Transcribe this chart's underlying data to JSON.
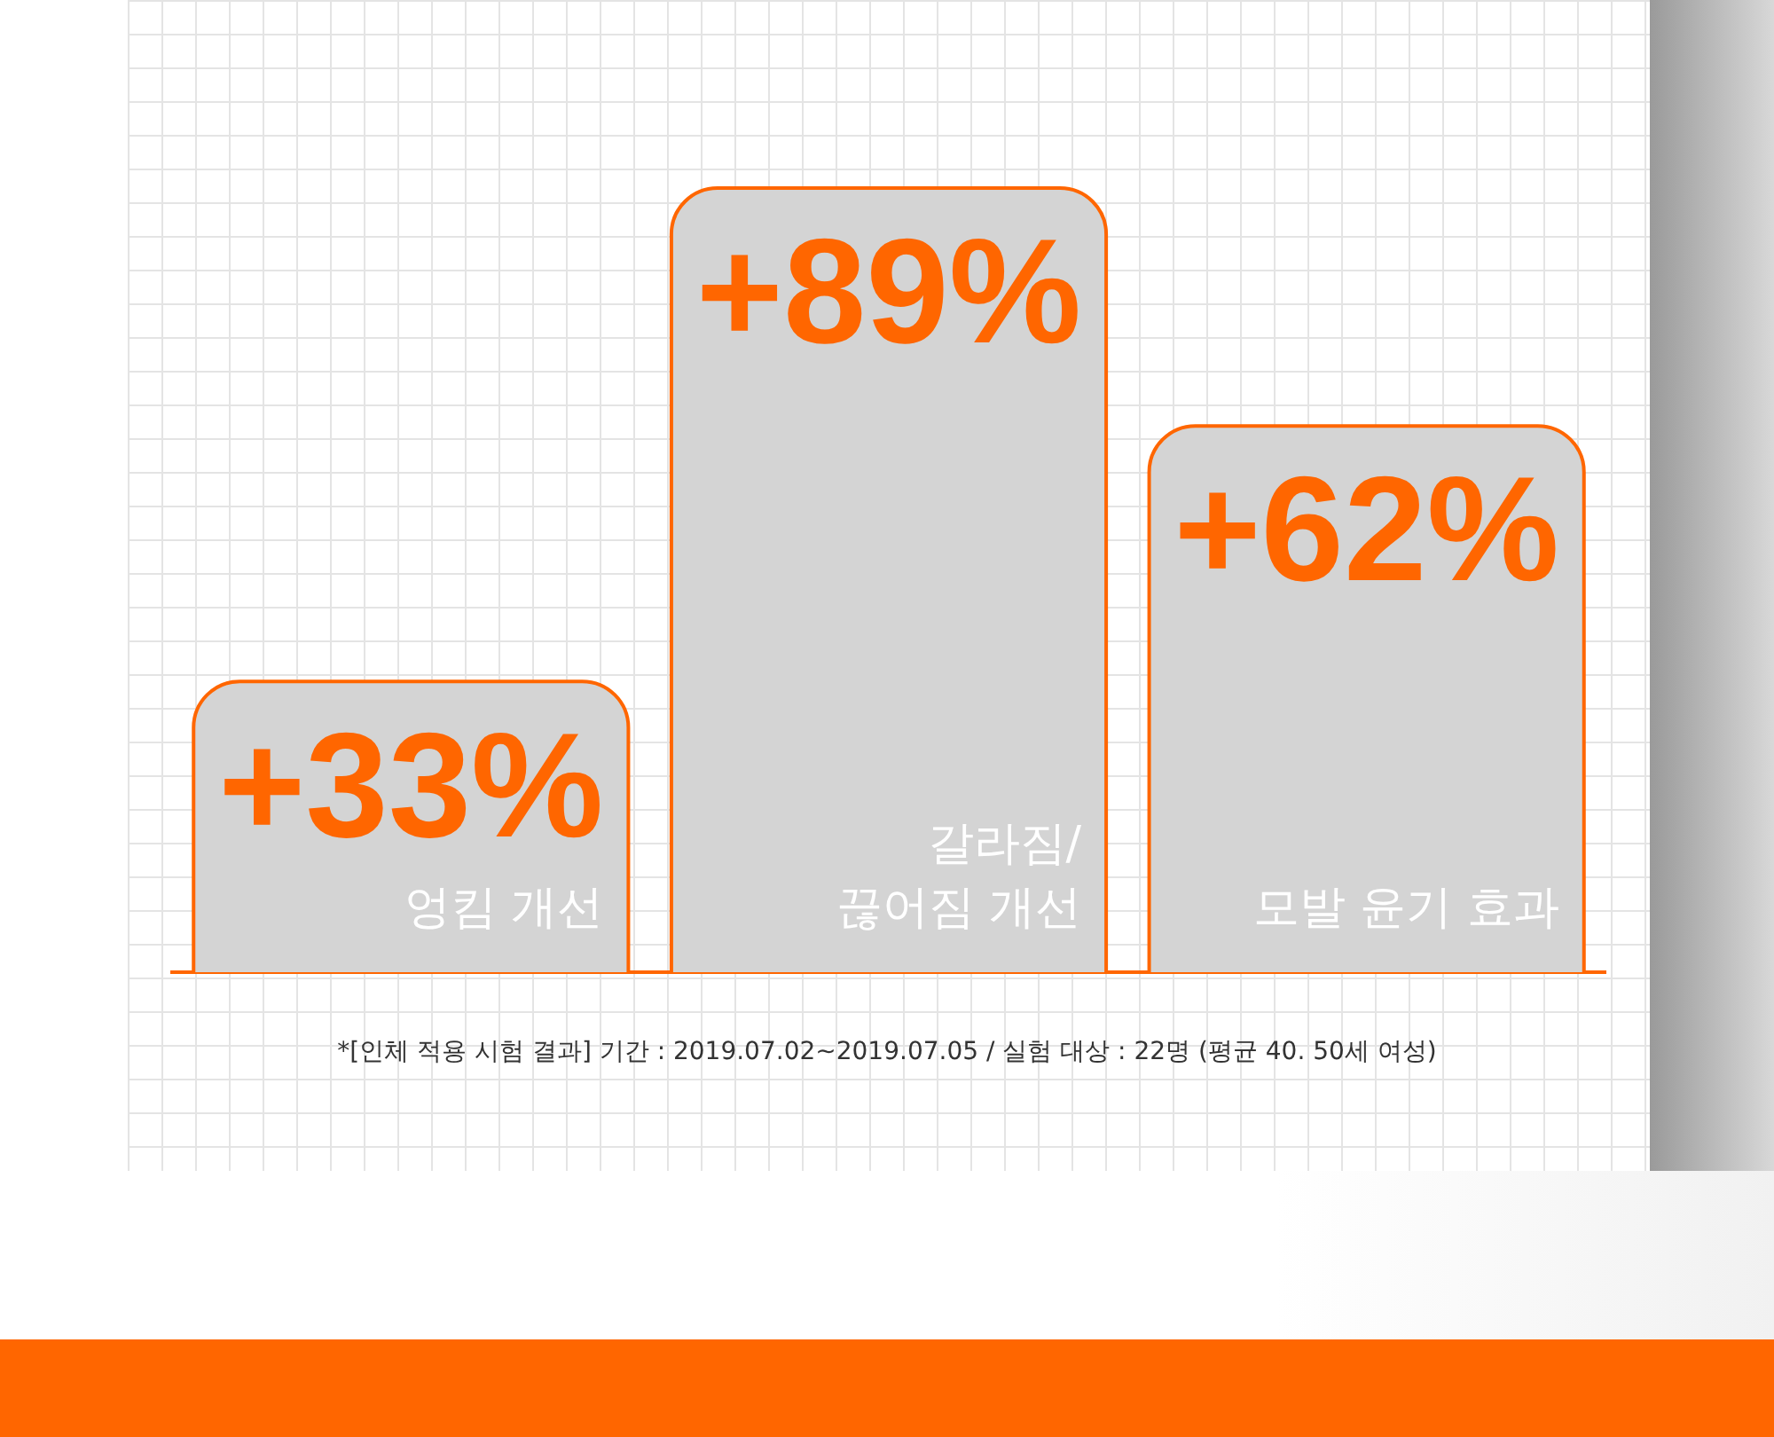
{
  "chart_data": {
    "type": "bar",
    "categories": [
      "엉킴 개선",
      "갈라짐/ 끊어짐 개선",
      "모발 윤기 효과"
    ],
    "values": [
      33,
      89,
      62
    ],
    "value_labels": [
      "+33%",
      "+89%",
      "+62%"
    ],
    "color": "#d4d4d4",
    "legend": false,
    "grid": false,
    "annotations": [
      "*[인체 적용 시험 결과] 기간 : 2019.07.02~2019.07.05 / 실험 대상 : 22명 (평균 40. 50세 여성)"
    ]
  }
}
